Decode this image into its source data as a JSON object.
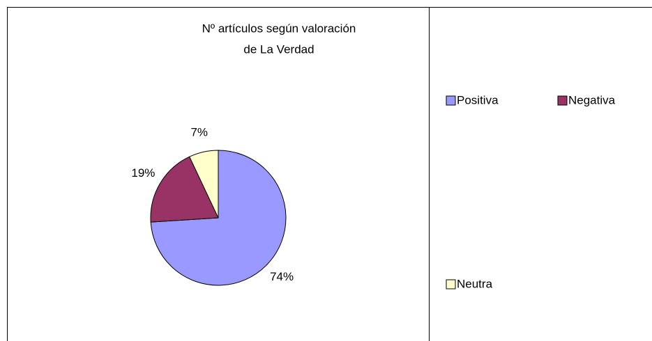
{
  "chart_data": {
    "type": "pie",
    "title": [
      "Nº artículos según valoración",
      "de La Verdad"
    ],
    "categories": [
      "Positiva",
      "Negativa",
      "Neutra"
    ],
    "values": [
      74,
      19,
      7
    ],
    "value_labels": [
      "74%",
      "19%",
      "7%"
    ],
    "colors": [
      "#9999ff",
      "#993366",
      "#ffffcc"
    ]
  }
}
